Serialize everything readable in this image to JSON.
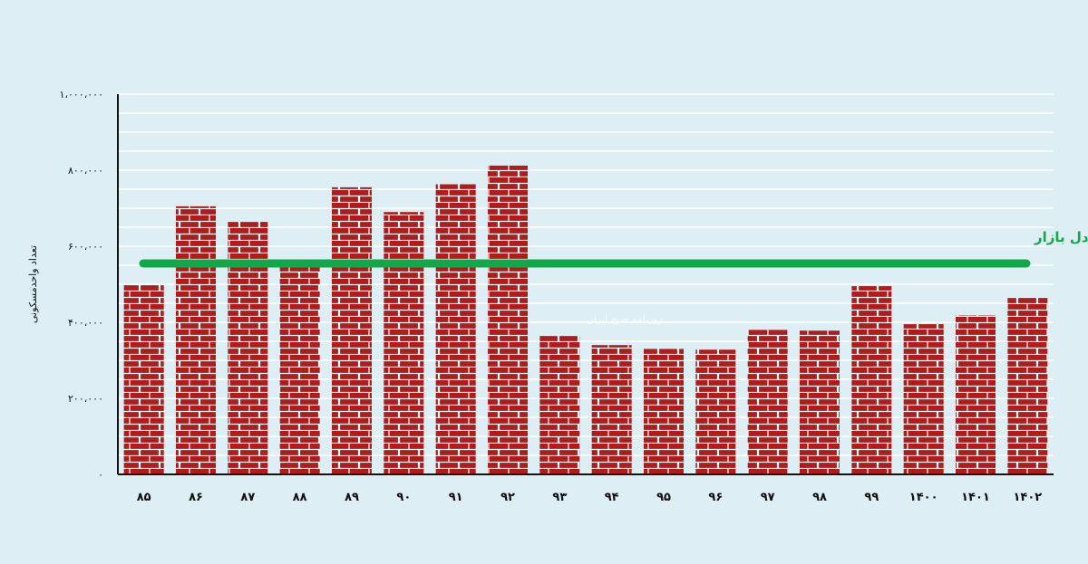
{
  "chart_data": {
    "type": "bar",
    "categories": [
      "۸۵",
      "۸۶",
      "۸۷",
      "۸۸",
      "۸۹",
      "۹۰",
      "۹۱",
      "۹۲",
      "۹۳",
      "۹۴",
      "۹۵",
      "۹۶",
      "۹۷",
      "۹۸",
      "۹۹",
      "۱۴۰۰",
      "۱۴۰۱",
      "۱۴۰۲"
    ],
    "values": [
      500000,
      705000,
      665000,
      550000,
      755000,
      690000,
      763000,
      812000,
      365000,
      340000,
      330000,
      328000,
      380000,
      378000,
      495000,
      395000,
      418000,
      465000
    ],
    "ylabel": "تعداد واحدمسکونی",
    "ylim": [
      0,
      1000000
    ],
    "yticks": [
      0,
      200000,
      400000,
      600000,
      800000,
      1000000
    ],
    "ytick_labels": [
      "۰",
      "۲۰۰،۰۰۰",
      "۴۰۰،۰۰۰",
      "۶۰۰،۰۰۰",
      "۸۰۰،۰۰۰",
      "۱،۰۰۰،۰۰۰"
    ],
    "reference_line": {
      "value": 550000,
      "label": "حداقل عرضه مورد نیاز برای تعادل بازار",
      "color": "#12a84a"
    },
    "bar_color": "#b01c1c",
    "grid": "horizontal"
  },
  "watermark": {
    "text": "روزنامه صبح ایران"
  }
}
